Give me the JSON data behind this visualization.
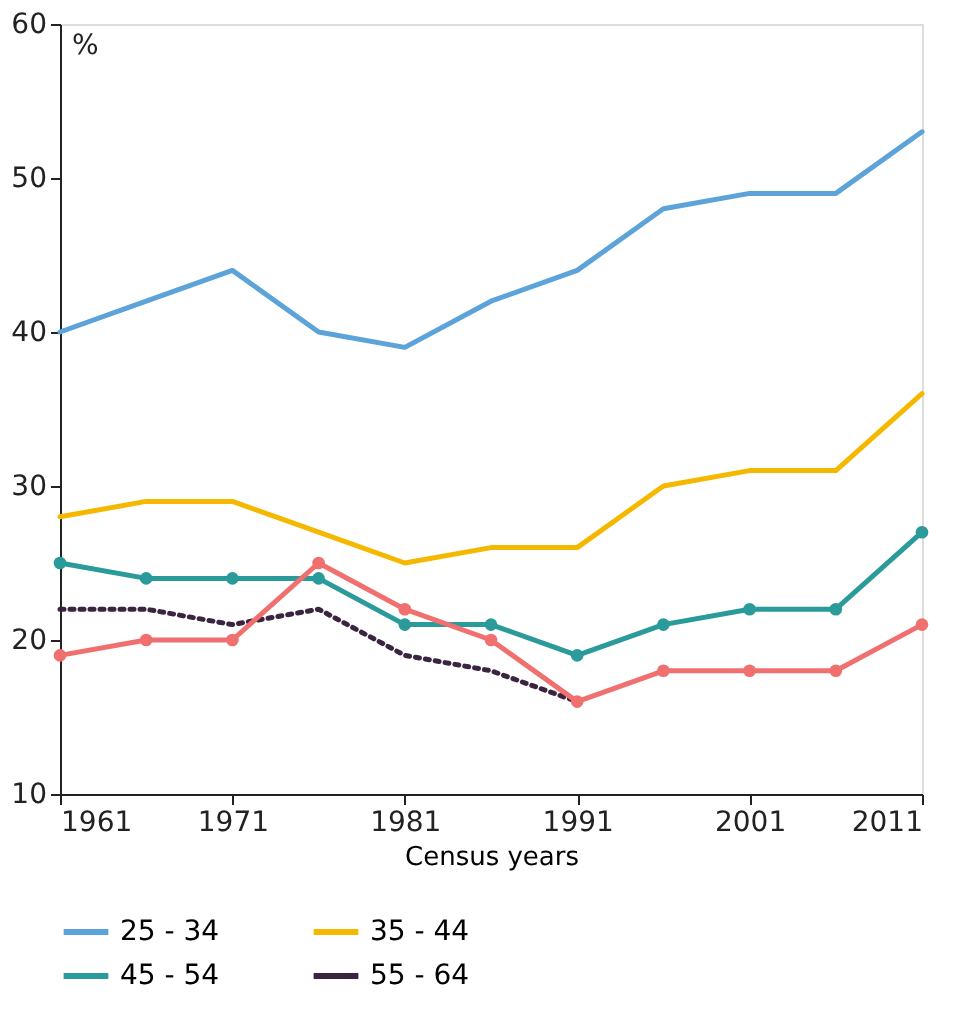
{
  "chart_data": {
    "type": "line",
    "xlabel": "Census years",
    "ylabel": "%",
    "x": [
      1961,
      1966,
      1971,
      1976,
      1981,
      1986,
      1991,
      1996,
      2001,
      2006,
      2011
    ],
    "xlim": [
      1961,
      2011
    ],
    "xticks": [
      1961,
      1971,
      1981,
      1991,
      2001,
      2011
    ],
    "ylim": [
      10,
      60
    ],
    "yticks": [
      10,
      20,
      30,
      40,
      50,
      60
    ],
    "grid": false,
    "legend": "bottom",
    "series": [
      {
        "name": "25 - 34",
        "color": "#5ba3d9",
        "line_style": "solid",
        "marker": "none",
        "values": [
          40,
          42,
          44,
          40,
          39,
          42,
          44,
          48,
          49,
          49,
          53
        ]
      },
      {
        "name": "35 - 44",
        "color": "#f5b800",
        "line_style": "solid",
        "marker": "none",
        "values": [
          28,
          29,
          29,
          27,
          25,
          26,
          26,
          30,
          31,
          31,
          36
        ]
      },
      {
        "name": "45 - 54",
        "color": "#2a9a9a",
        "line_style": "solid",
        "marker": "circle",
        "values": [
          25,
          24,
          24,
          24,
          21,
          21,
          19,
          21,
          22,
          22,
          27
        ]
      },
      {
        "name": "55 - 64",
        "color": "#3a2440",
        "line_style": "dotted",
        "marker": "none",
        "values": [
          22,
          22,
          21,
          22,
          19,
          18,
          16,
          null,
          null,
          null,
          null
        ]
      },
      {
        "color": "#f07070",
        "line_style": "solid",
        "marker": "circle",
        "values": [
          19,
          20,
          20,
          25,
          22,
          20,
          16,
          18,
          18,
          18,
          21
        ]
      }
    ]
  }
}
